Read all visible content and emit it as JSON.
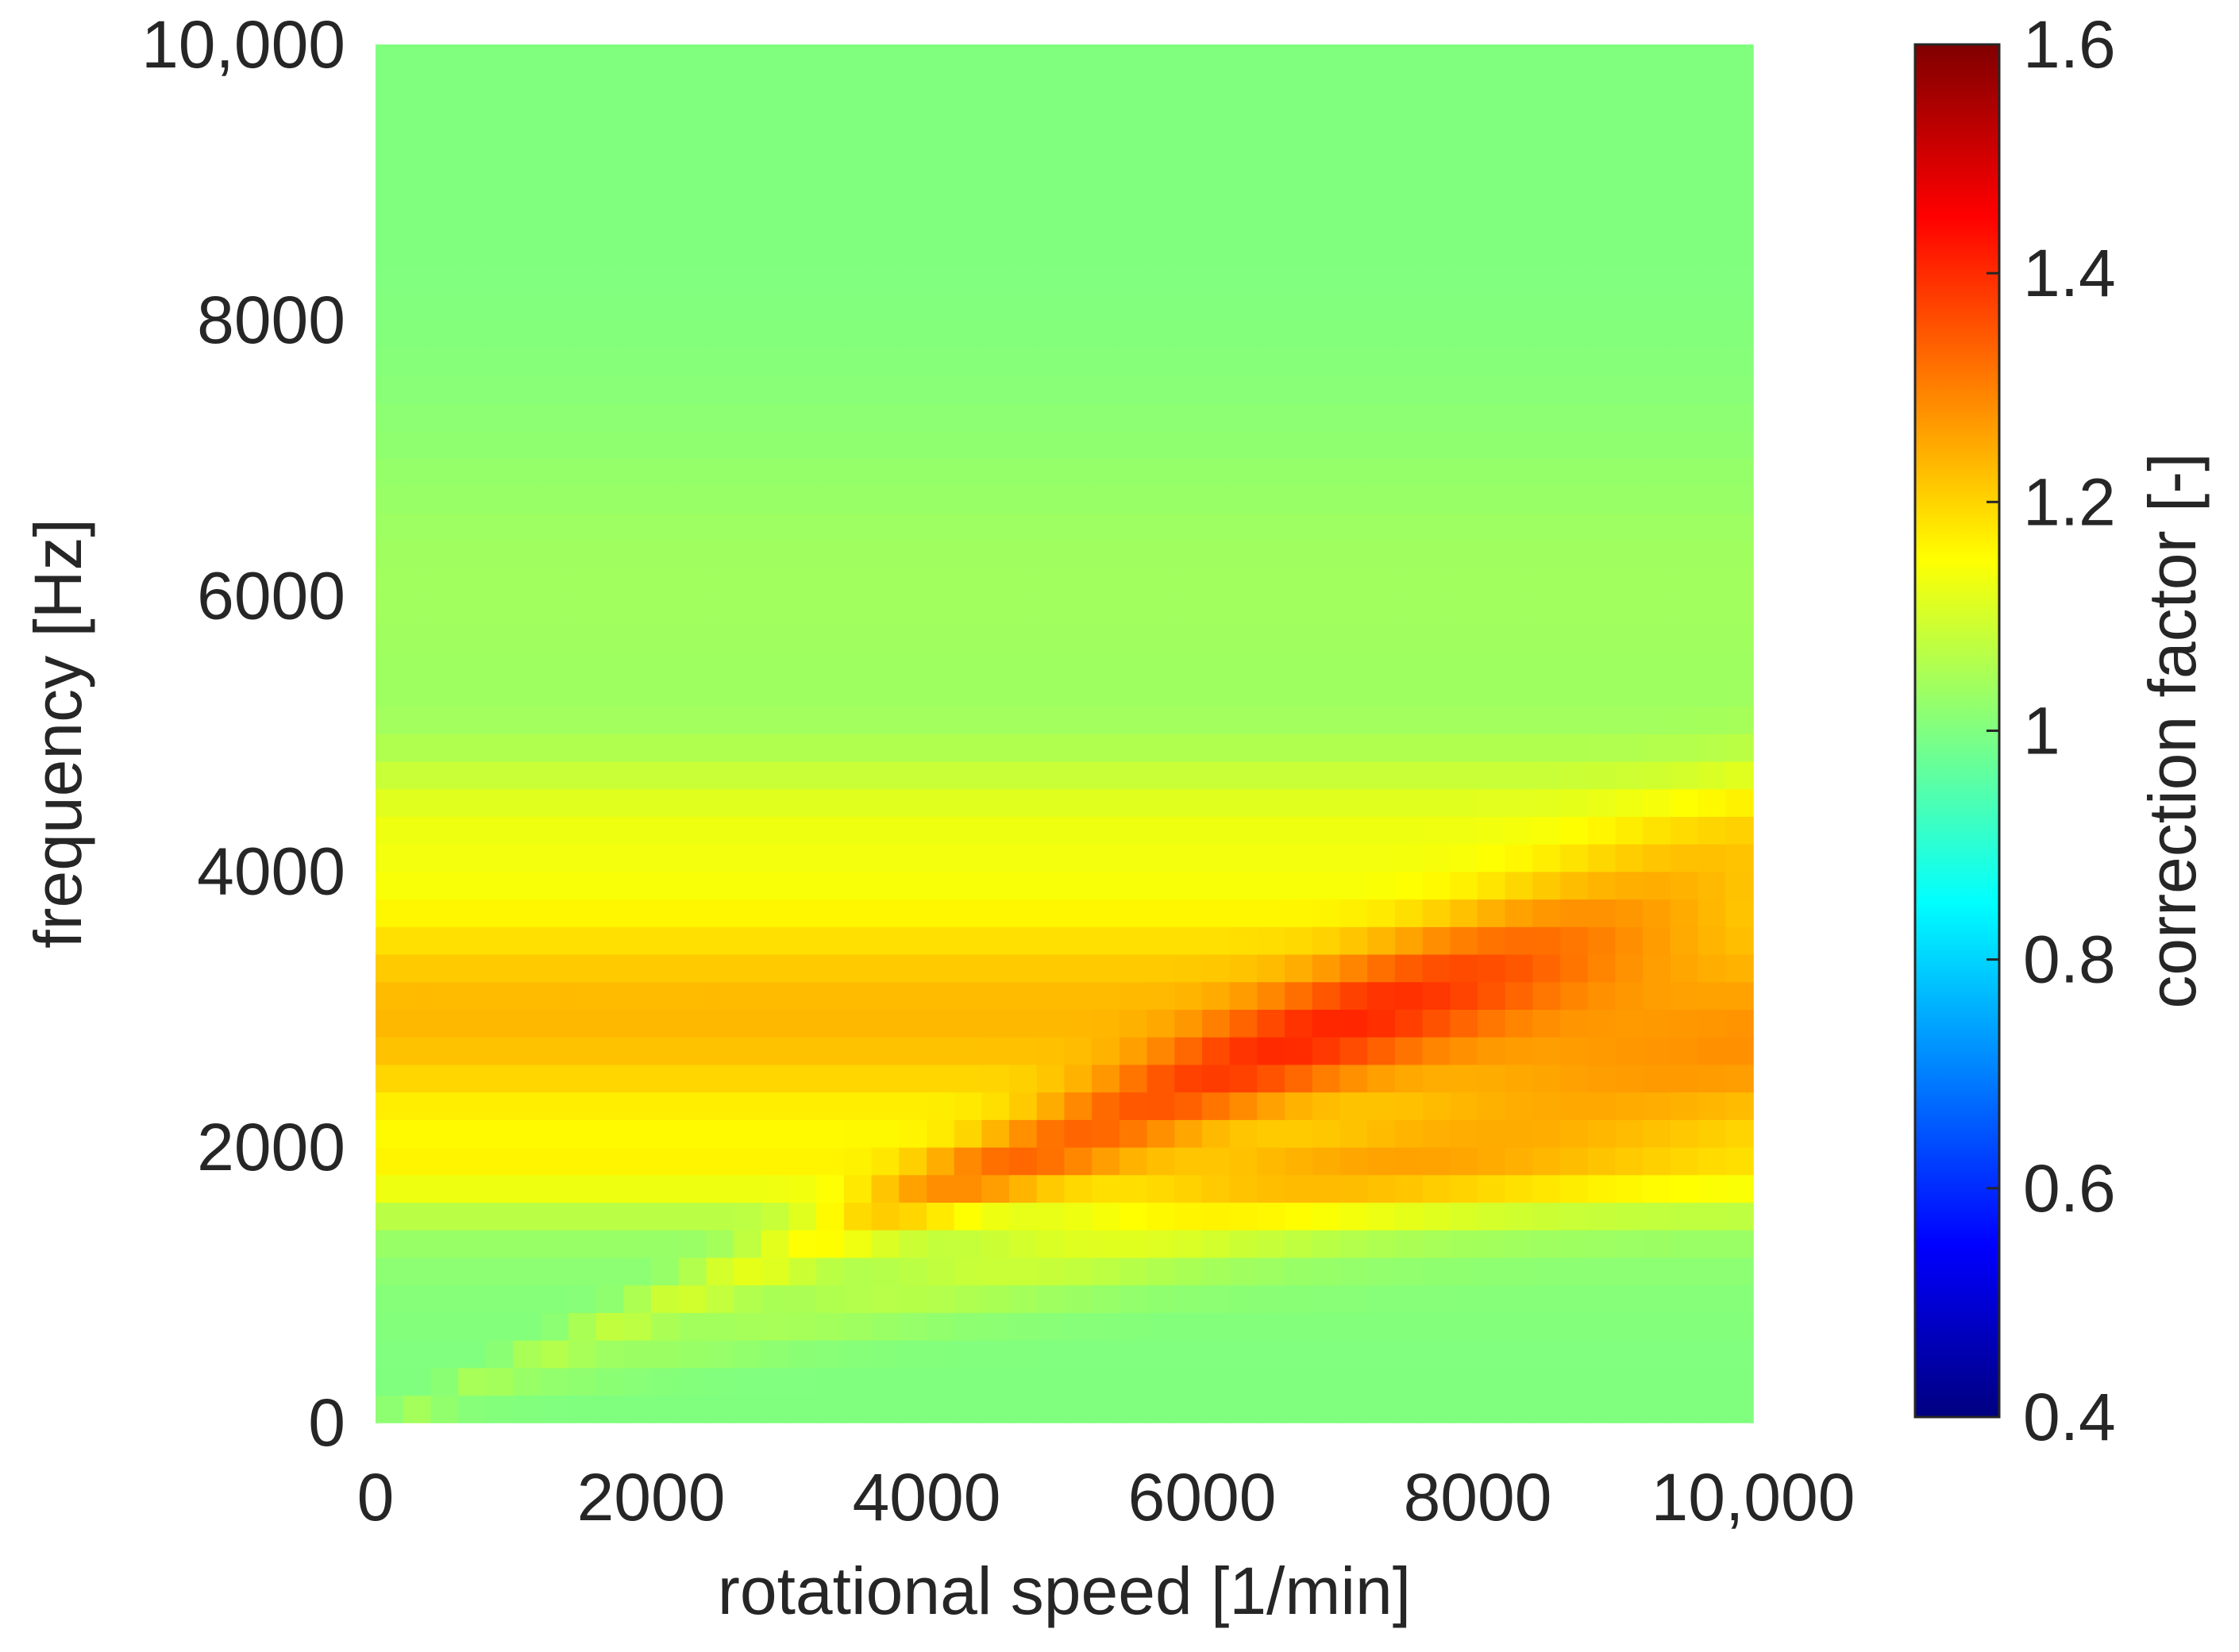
{
  "chart_data": {
    "type": "heatmap",
    "title": "",
    "xlabel": "rotational speed [1/min]",
    "ylabel": "frequency [Hz]",
    "xlim": [
      0,
      10000
    ],
    "ylim": [
      0,
      10000
    ],
    "xticks": [
      "0",
      "2000",
      "4000",
      "6000",
      "8000",
      "10,000"
    ],
    "yticks": [
      "0",
      "2000",
      "4000",
      "6000",
      "8000",
      "10,000"
    ],
    "colorbar": {
      "label": "correction factor [-]",
      "range": [
        0.4,
        1.6
      ],
      "ticks": [
        "0.4",
        "0.6",
        "0.8",
        "1",
        "1.2",
        "1.4",
        "1.6"
      ],
      "colormap": "jet",
      "colors": [
        "#00007f",
        "#0000ff",
        "#007fff",
        "#00ffff",
        "#7fff7f",
        "#ffff00",
        "#ff7f00",
        "#ff0000",
        "#7f0000"
      ]
    },
    "field": {
      "background_value": 1.0,
      "horizontal_bands": [
        {
          "center_frequency": 2950,
          "width_frequency": 1100,
          "peak_value": 1.26
        },
        {
          "center_frequency": 1800,
          "width_frequency": 300,
          "peak_value": 1.15
        },
        {
          "center_frequency": 4400,
          "width_frequency": 500,
          "peak_value": 1.15
        },
        {
          "center_frequency": 6000,
          "width_frequency": 1300,
          "peak_value": 1.08
        }
      ],
      "diagonal_ridges": [
        {
          "start": [
            0,
            0
          ],
          "end": [
            10000,
            4100
          ],
          "peak_value": 1.33,
          "peak_speed": 6000
        },
        {
          "start": [
            0,
            0
          ],
          "end": [
            10000,
            2500
          ],
          "peak_value": 1.18,
          "peak_speed": 7000
        }
      ],
      "grid_steps": [
        200,
        200
      ]
    }
  }
}
